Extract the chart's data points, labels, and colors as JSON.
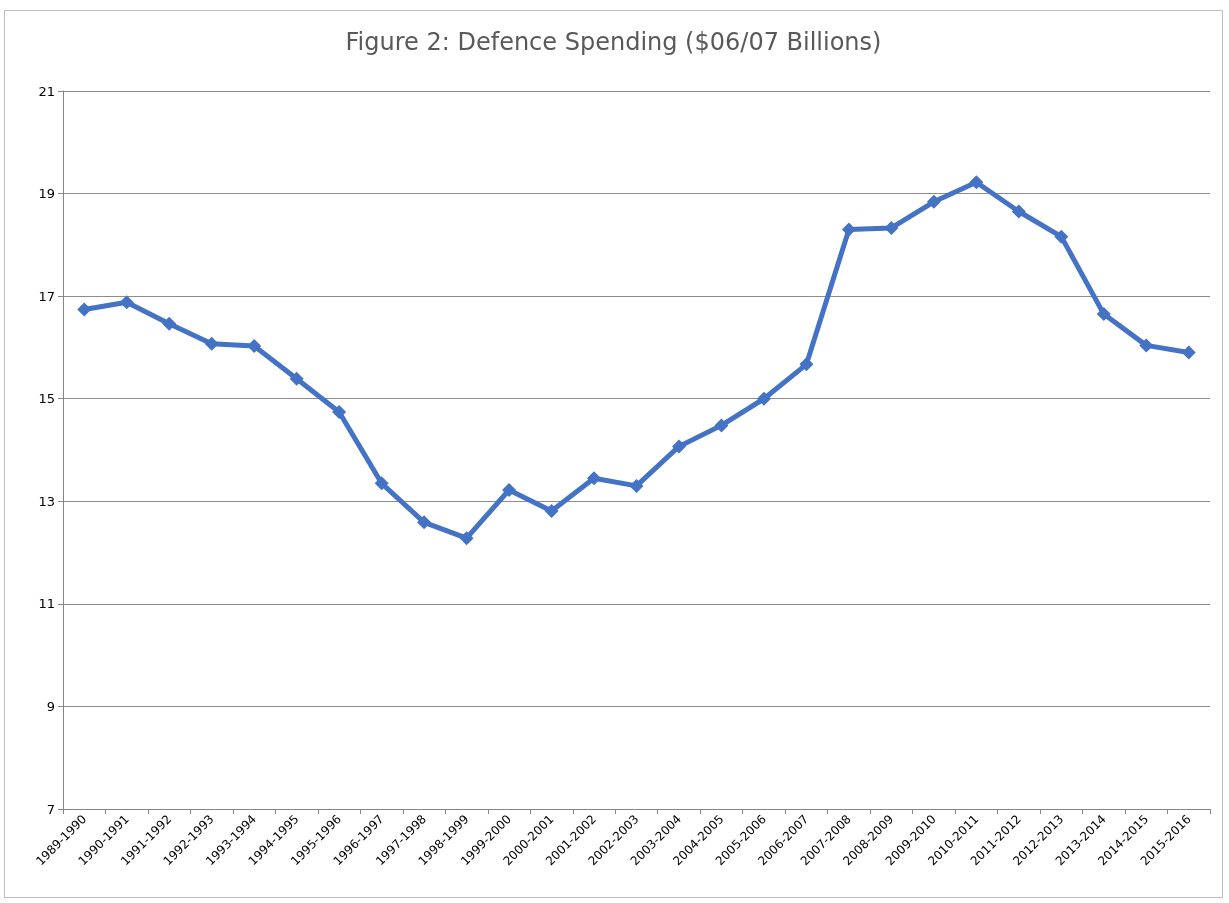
{
  "chart_data": {
    "type": "line",
    "title": "Figure 2: Defence Spending ($06/07 Billions)",
    "categories": [
      "1989-1990",
      "1990-1991",
      "1991-1992",
      "1992-1993",
      "1993-1994",
      "1994-1995",
      "1995-1996",
      "1996-1997",
      "1997-1998",
      "1998-1999",
      "1999-2000",
      "2000-2001",
      "2001-2002",
      "2002-2003",
      "2003-2004",
      "2004-2005",
      "2005-2006",
      "2006-2007",
      "2007-2008",
      "2008-2009",
      "2009-2010",
      "2010-2011",
      "2011-2012",
      "2012-2013",
      "2013-2014",
      "2014-2015",
      "2015-2016"
    ],
    "series": [
      {
        "color": "#4472c4",
        "values": [
          16.74,
          16.88,
          16.46,
          16.07,
          16.03,
          15.39,
          14.74,
          13.35,
          12.59,
          12.28,
          13.22,
          12.81,
          13.45,
          13.3,
          14.07,
          14.48,
          15.0,
          15.67,
          18.3,
          18.33,
          18.84,
          19.22,
          18.65,
          18.16,
          16.65,
          16.04,
          15.9
        ]
      }
    ],
    "ylim": [
      7,
      21
    ],
    "yticks": [
      7,
      9,
      11,
      13,
      15,
      17,
      19,
      21
    ],
    "grid": "y",
    "marker": "diamond",
    "line_style": "solid"
  }
}
